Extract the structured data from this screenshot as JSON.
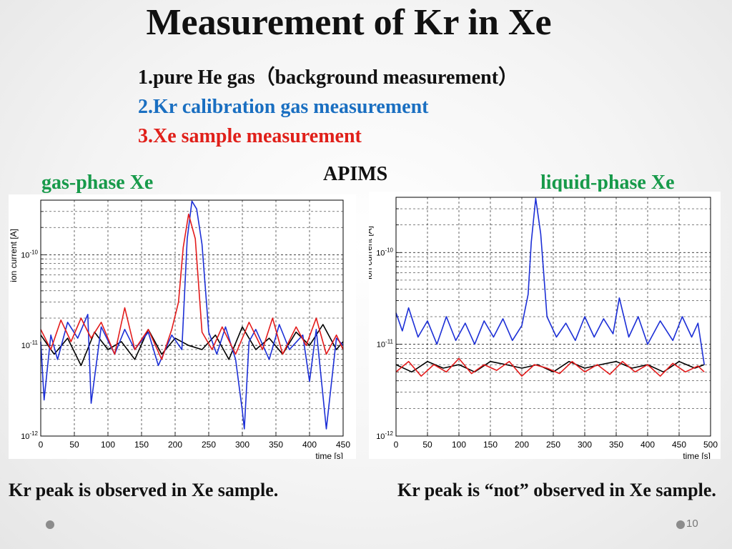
{
  "slide": {
    "title": "Measurement of Kr in Xe",
    "steps": [
      "1.pure He gas（background measurement）",
      "2.Kr calibration gas measurement",
      "3.Xe sample measurement"
    ],
    "center_label": "APIMS",
    "left_label": "gas-phase Xe",
    "right_label": "liquid-phase Xe",
    "left_caption": "Kr peak is observed in Xe sample.",
    "right_caption": "Kr peak is “not” observed in Xe sample.",
    "page_number": "10"
  },
  "colors": {
    "background_measurement": "#000000",
    "kr_calibration": "#1c2fd6",
    "xe_sample": "#e31b1b",
    "label_green": "#179a4a",
    "step2_blue": "#1a6fc1",
    "step3_red": "#e0201a"
  },
  "chart_data": [
    {
      "type": "line",
      "title": "gas-phase Xe",
      "xlabel": "time [s]",
      "ylabel": "ion current [A]",
      "xlim": [
        0,
        450
      ],
      "ylim": [
        1e-12,
        4e-10
      ],
      "log_y": true,
      "grid": true,
      "x_ticks": [
        "0",
        "50",
        "100",
        "150",
        "200",
        "250",
        "300",
        "350",
        "400",
        "450"
      ],
      "y_ticks": [
        "10^-12",
        "10^-11",
        "10^-10"
      ],
      "series": [
        {
          "color": "#000000",
          "x": [
            0,
            20,
            40,
            60,
            80,
            100,
            120,
            140,
            160,
            180,
            200,
            220,
            240,
            260,
            280,
            300,
            320,
            340,
            360,
            380,
            400,
            420,
            440,
            450
          ],
          "values": [
            1.3e-11,
            8e-12,
            1.2e-11,
            6e-12,
            1.4e-11,
            9e-12,
            1.1e-11,
            7e-12,
            1.5e-11,
            8e-12,
            1.2e-11,
            1e-11,
            9e-12,
            1.3e-11,
            7e-12,
            1.6e-11,
            9e-12,
            1.2e-11,
            8e-12,
            1.4e-11,
            1e-11,
            1.7e-11,
            9e-12,
            1.1e-11
          ]
        },
        {
          "color": "#1c2fd6",
          "x": [
            0,
            5,
            15,
            25,
            40,
            55,
            70,
            75,
            90,
            110,
            125,
            140,
            160,
            175,
            195,
            210,
            218,
            225,
            232,
            240,
            250,
            262,
            275,
            290,
            300,
            303,
            310,
            320,
            340,
            355,
            370,
            390,
            400,
            410,
            425,
            440,
            450
          ],
          "values": [
            1.1e-11,
            2.5e-12,
            1.3e-11,
            7e-12,
            1.8e-11,
            1.2e-11,
            2.2e-11,
            2.3e-12,
            1.6e-11,
            8e-12,
            1.5e-11,
            9e-12,
            1.4e-11,
            6e-12,
            1.3e-11,
            9e-12,
            1.5e-10,
            3.9e-10,
            3.2e-10,
            1.3e-10,
            1.4e-11,
            8e-12,
            1.6e-11,
            7e-12,
            1.9e-12,
            1.2e-12,
            1.1e-11,
            1.5e-11,
            7e-12,
            1.7e-11,
            9e-12,
            1.3e-11,
            4e-12,
            1.5e-11,
            1.2e-12,
            1.2e-11,
            1e-11
          ]
        },
        {
          "color": "#e31b1b",
          "x": [
            0,
            15,
            30,
            45,
            60,
            75,
            90,
            110,
            125,
            140,
            160,
            180,
            195,
            205,
            212,
            220,
            230,
            240,
            255,
            270,
            290,
            310,
            330,
            345,
            360,
            380,
            395,
            410,
            425,
            440,
            450
          ],
          "values": [
            1.5e-11,
            9e-12,
            1.9e-11,
            1.1e-11,
            2e-11,
            1.2e-11,
            1.8e-11,
            8e-12,
            2.6e-11,
            9e-12,
            1.5e-11,
            7e-12,
            1.5e-11,
            3e-11,
            1.2e-10,
            2.8e-10,
            1.5e-10,
            1.4e-11,
            9e-12,
            1.6e-11,
            8e-12,
            1.8e-11,
            9e-12,
            2e-11,
            8e-12,
            1.6e-11,
            1e-11,
            2e-11,
            8e-12,
            1.3e-11,
            9e-12
          ]
        }
      ]
    },
    {
      "type": "line",
      "title": "liquid-phase Xe",
      "xlabel": "time [s]",
      "ylabel": "ion current [A]",
      "xlim": [
        0,
        500
      ],
      "ylim": [
        1e-12,
        4e-10
      ],
      "log_y": true,
      "grid": true,
      "x_ticks": [
        "0",
        "50",
        "100",
        "150",
        "200",
        "250",
        "300",
        "350",
        "400",
        "450",
        "500"
      ],
      "y_ticks": [
        "10^-12",
        "10^-11",
        "10^-10"
      ],
      "series": [
        {
          "color": "#000000",
          "x": [
            0,
            25,
            50,
            75,
            100,
            125,
            150,
            175,
            200,
            225,
            250,
            275,
            300,
            325,
            350,
            375,
            400,
            425,
            450,
            475,
            490
          ],
          "values": [
            6e-12,
            5e-12,
            6.5e-12,
            5.5e-12,
            6e-12,
            5e-12,
            6.5e-12,
            6e-12,
            5.5e-12,
            6e-12,
            5e-12,
            6.5e-12,
            5.5e-12,
            6e-12,
            6.5e-12,
            5.5e-12,
            6e-12,
            5e-12,
            6.5e-12,
            5.5e-12,
            6e-12
          ]
        },
        {
          "color": "#1c2fd6",
          "x": [
            0,
            10,
            20,
            35,
            50,
            65,
            80,
            95,
            110,
            125,
            140,
            155,
            170,
            185,
            200,
            210,
            215,
            222,
            230,
            240,
            255,
            270,
            285,
            300,
            315,
            330,
            345,
            355,
            370,
            385,
            400,
            420,
            440,
            455,
            470,
            480,
            490
          ],
          "values": [
            2.2e-11,
            1.4e-11,
            2.5e-11,
            1.2e-11,
            1.8e-11,
            1e-11,
            2e-11,
            1.1e-11,
            1.7e-11,
            1e-11,
            1.8e-11,
            1.2e-11,
            1.9e-11,
            1.1e-11,
            1.6e-11,
            3.5e-11,
            1.3e-10,
            3.9e-10,
            1.6e-10,
            2e-11,
            1.2e-11,
            1.7e-11,
            1.1e-11,
            2e-11,
            1.2e-11,
            1.9e-11,
            1.3e-11,
            3.2e-11,
            1.2e-11,
            2e-11,
            1e-11,
            1.8e-11,
            1.1e-11,
            2e-11,
            1.2e-11,
            1.7e-11,
            6e-12
          ]
        },
        {
          "color": "#e31b1b",
          "x": [
            0,
            20,
            40,
            60,
            80,
            100,
            120,
            140,
            160,
            180,
            200,
            220,
            240,
            260,
            280,
            300,
            320,
            340,
            360,
            380,
            400,
            420,
            440,
            460,
            480,
            490
          ],
          "values": [
            5e-12,
            6.5e-12,
            4.5e-12,
            6e-12,
            5e-12,
            7e-12,
            4.8e-12,
            6e-12,
            5.2e-12,
            6.5e-12,
            4.5e-12,
            6e-12,
            5.5e-12,
            4.8e-12,
            6.5e-12,
            5e-12,
            6e-12,
            4.7e-12,
            6.5e-12,
            5e-12,
            6e-12,
            4.5e-12,
            6.2e-12,
            5e-12,
            5.8e-12,
            5e-12
          ]
        }
      ]
    }
  ]
}
